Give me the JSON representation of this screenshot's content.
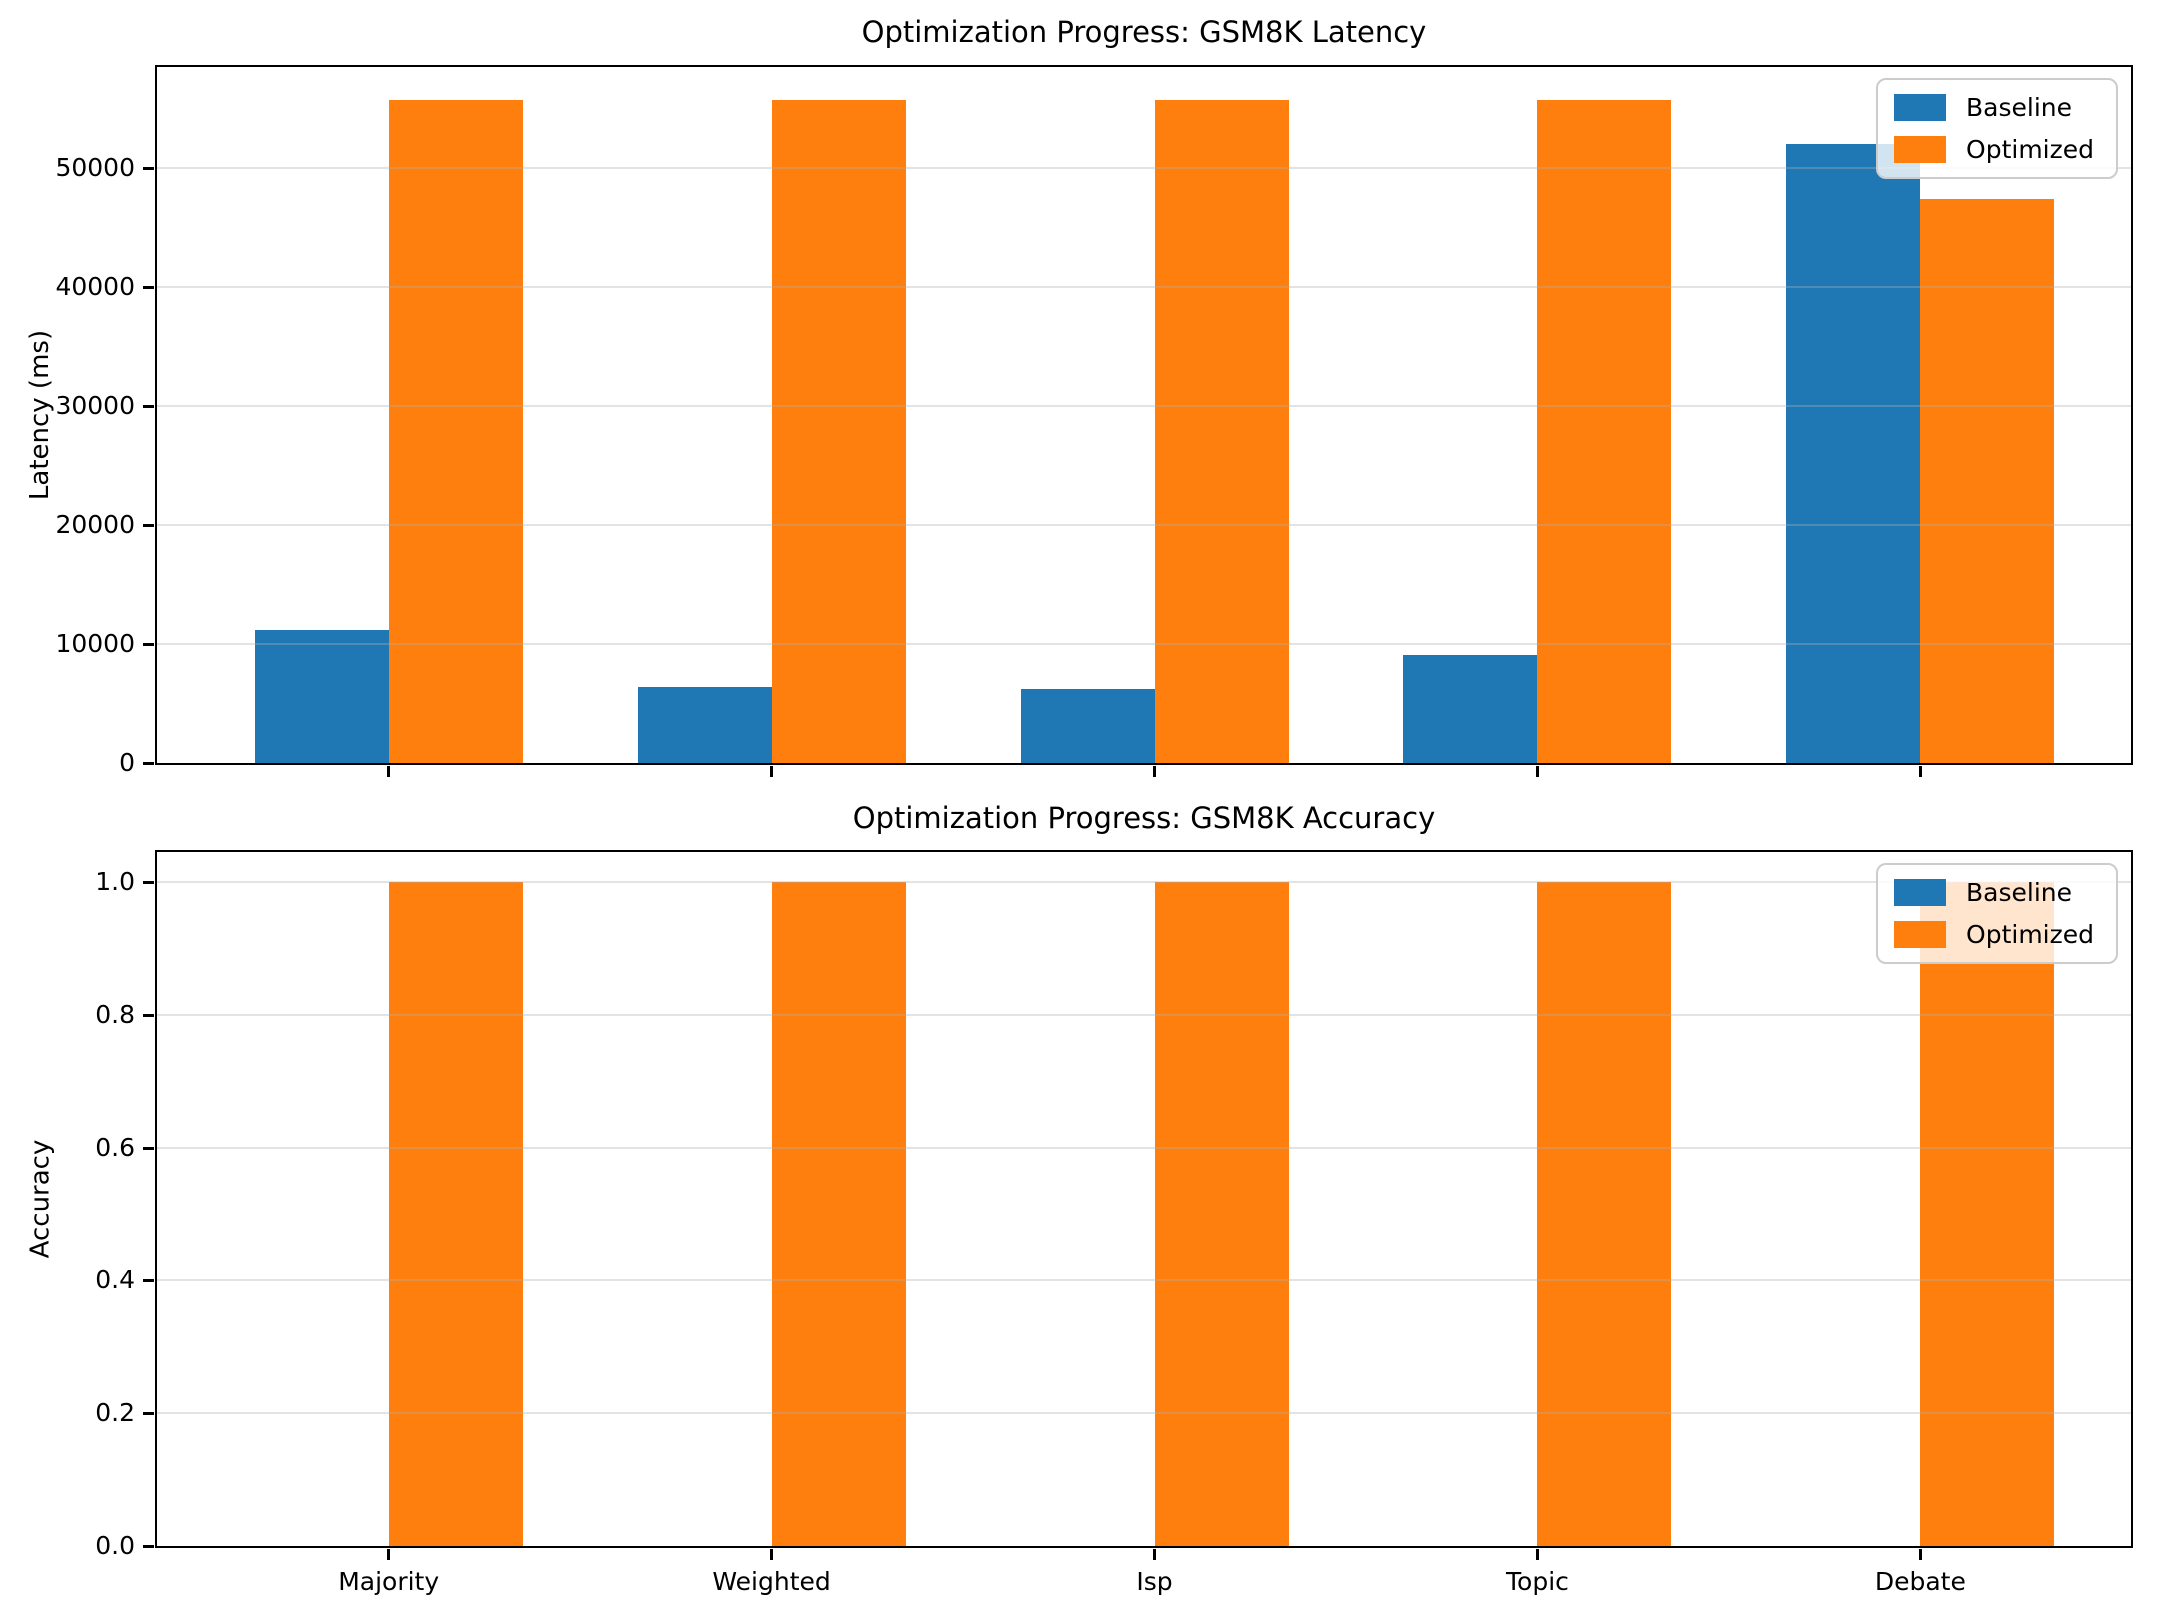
{
  "chart_data": [
    {
      "type": "bar",
      "title": "Optimization Progress: GSM8K Latency",
      "xlabel": "",
      "ylabel": "Latency (ms)",
      "categories": [
        "Majority",
        "Weighted",
        "Isp",
        "Topic",
        "Debate"
      ],
      "series": [
        {
          "name": "Baseline",
          "color": "#1f77b4",
          "values": [
            11200,
            6400,
            6200,
            9100,
            52000
          ]
        },
        {
          "name": "Optimized",
          "color": "#ff7f0e",
          "values": [
            55700,
            55700,
            55700,
            55700,
            47400
          ]
        }
      ],
      "yticks": [
        0,
        10000,
        20000,
        30000,
        40000,
        50000
      ],
      "ytick_labels": [
        "0",
        "10000",
        "20000",
        "30000",
        "40000",
        "50000"
      ],
      "ylim": [
        0,
        58500
      ],
      "xlim": [
        -0.605,
        4.55
      ],
      "bar_width": 0.35,
      "grid": true,
      "legend_position": "upper right",
      "show_x_tick_labels": false
    },
    {
      "type": "bar",
      "title": "Optimization Progress: GSM8K Accuracy",
      "xlabel": "",
      "ylabel": "Accuracy",
      "categories": [
        "Majority",
        "Weighted",
        "Isp",
        "Topic",
        "Debate"
      ],
      "series": [
        {
          "name": "Baseline",
          "color": "#1f77b4",
          "values": [
            0,
            0,
            0,
            0,
            0
          ]
        },
        {
          "name": "Optimized",
          "color": "#ff7f0e",
          "values": [
            1.0,
            1.0,
            1.0,
            1.0,
            1.0
          ]
        }
      ],
      "yticks": [
        0,
        0.2,
        0.4,
        0.6,
        0.8,
        1.0
      ],
      "ytick_labels": [
        "0.0",
        "0.2",
        "0.4",
        "0.6",
        "0.8",
        "1.0"
      ],
      "ylim": [
        0,
        1.045
      ],
      "xlim": [
        -0.605,
        4.55
      ],
      "bar_width": 0.35,
      "grid": true,
      "legend_position": "upper right",
      "show_x_tick_labels": true
    }
  ]
}
